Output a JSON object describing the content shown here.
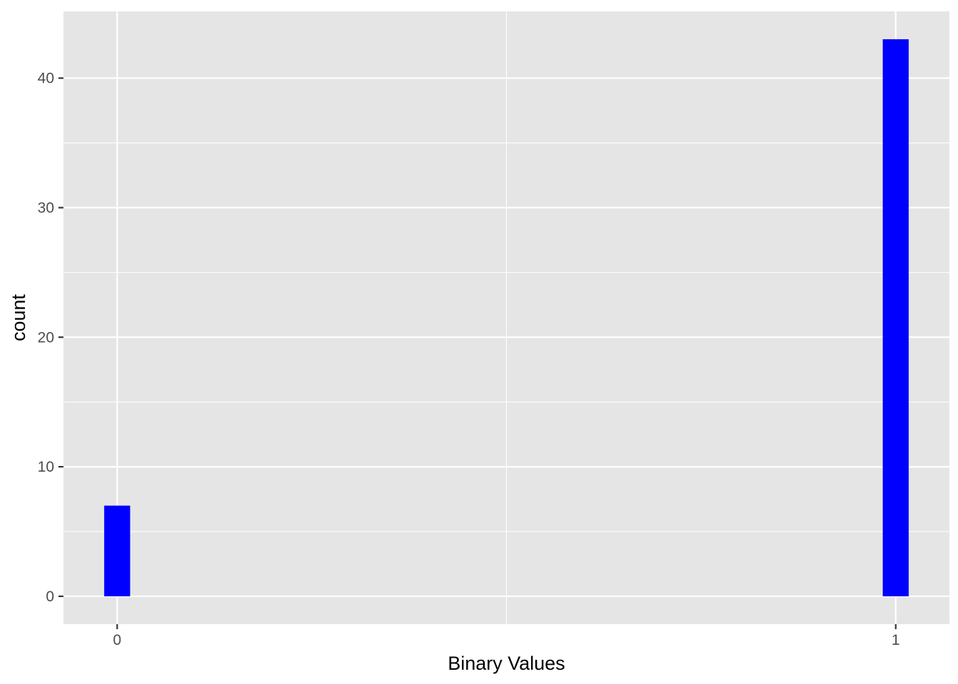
{
  "chart_data": {
    "type": "bar",
    "title": "",
    "xlabel": "Binary Values",
    "ylabel": "count",
    "x": [
      0,
      1
    ],
    "values": [
      7,
      43
    ],
    "x_ticks": [
      0,
      1
    ],
    "x_tick_labels": [
      "0",
      "1"
    ],
    "y_ticks": [
      0,
      10,
      20,
      30,
      40
    ],
    "y_tick_labels": [
      "0",
      "10",
      "20",
      "30",
      "40"
    ],
    "xlim": [
      -0.069,
      1.069
    ],
    "ylim": [
      -2.15,
      45.15
    ],
    "bin_width": 0.0333,
    "grid": true,
    "colors": {
      "bar": "#0000ff",
      "panel_background": "#e5e5e5",
      "grid": "#ffffff",
      "tick_label": "#4d4d4d",
      "axis_title": "#000000",
      "tick_mark": "#333333"
    }
  }
}
